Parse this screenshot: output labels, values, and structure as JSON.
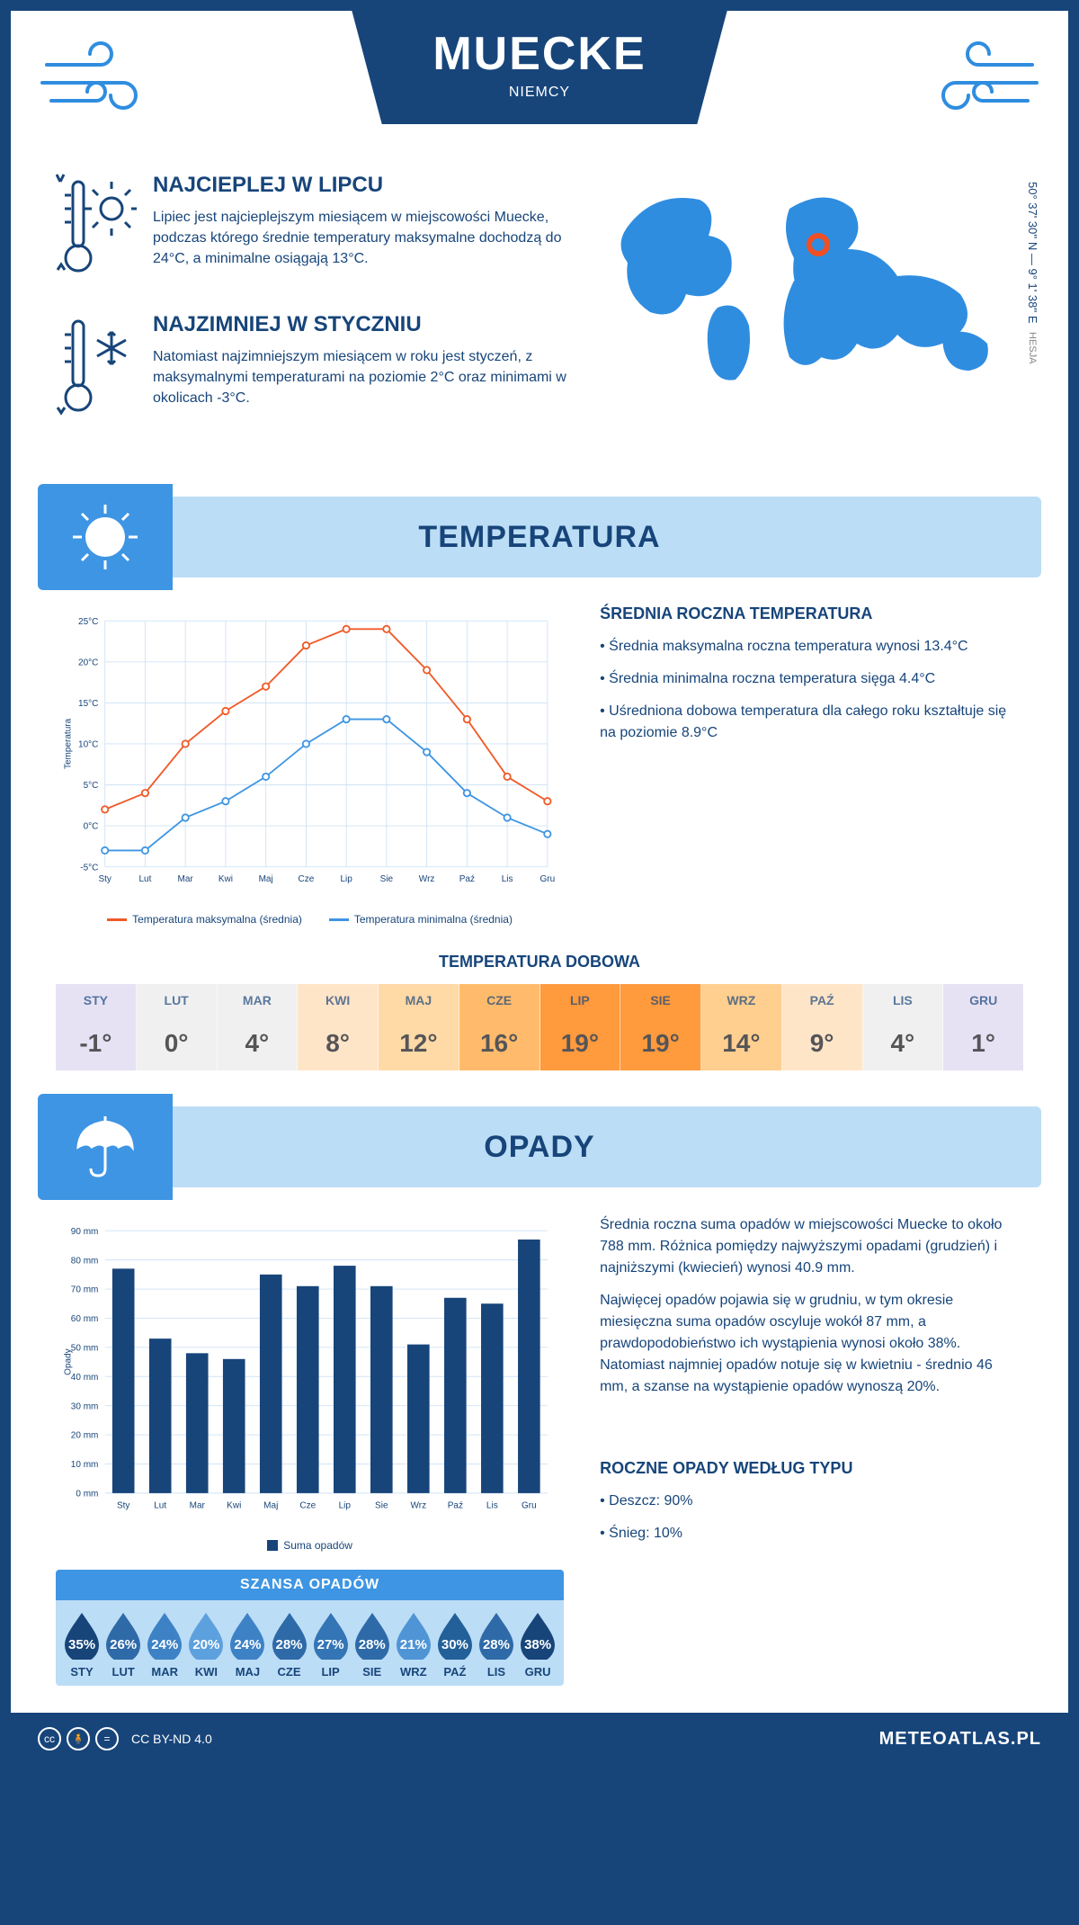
{
  "header": {
    "city": "MUECKE",
    "country": "NIEMCY"
  },
  "coords": {
    "text": "50° 37' 30'' N — 9° 1' 38'' E",
    "region": "HESJA"
  },
  "overview": {
    "hot": {
      "title": "NAJCIEPLEJ W LIPCU",
      "text": "Lipiec jest najcieplejszym miesiącem w miejscowości Muecke, podczas którego średnie temperatury maksymalne dochodzą do 24°C, a minimalne osiągają 13°C."
    },
    "cold": {
      "title": "NAJZIMNIEJ W STYCZNIU",
      "text": "Natomiast najzimniejszym miesiącem w roku jest styczeń, z maksymalnymi temperaturami na poziomie 2°C oraz minimami w okolicach -3°C."
    }
  },
  "temperature": {
    "section_title": "TEMPERATURA",
    "chart": {
      "type": "line",
      "months": [
        "Sty",
        "Lut",
        "Mar",
        "Kwi",
        "Maj",
        "Cze",
        "Lip",
        "Sie",
        "Wrz",
        "Paź",
        "Lis",
        "Gru"
      ],
      "series": [
        {
          "name": "Temperatura maksymalna (średnia)",
          "color": "#f05a28",
          "values": [
            2,
            4,
            10,
            14,
            17,
            22,
            24,
            24,
            19,
            13,
            6,
            3
          ]
        },
        {
          "name": "Temperatura minimalna (średnia)",
          "color": "#3e95e3",
          "values": [
            -3,
            -3,
            1,
            3,
            6,
            10,
            13,
            13,
            9,
            4,
            1,
            -1
          ]
        }
      ],
      "ylabel": "Temperatura",
      "ylim": [
        -5,
        25
      ],
      "ytick_step": 5,
      "grid_color": "#cfe3f5",
      "background": "#ffffff",
      "marker": "circle",
      "line_width": 2
    },
    "side": {
      "title": "ŚREDNIA ROCZNA TEMPERATURA",
      "bullets": [
        "• Średnia maksymalna roczna temperatura wynosi 13.4°C",
        "• Średnia minimalna roczna temperatura sięga 4.4°C",
        "• Uśredniona dobowa temperatura dla całego roku kształtuje się na poziomie 8.9°C"
      ]
    },
    "daily": {
      "title": "TEMPERATURA DOBOWA",
      "months": [
        "STY",
        "LUT",
        "MAR",
        "KWI",
        "MAJ",
        "CZE",
        "LIP",
        "SIE",
        "WRZ",
        "PAŹ",
        "LIS",
        "GRU"
      ],
      "values": [
        "-1°",
        "0°",
        "4°",
        "8°",
        "12°",
        "16°",
        "19°",
        "19°",
        "14°",
        "9°",
        "4°",
        "1°"
      ],
      "colors": [
        "#e6e2f4",
        "#f1f0f0",
        "#f1f0f0",
        "#ffe5c8",
        "#ffd9a6",
        "#ffbb6b",
        "#ff9a3d",
        "#ff9a3d",
        "#ffcf8f",
        "#ffe5c8",
        "#f1f0f0",
        "#e6e2f4"
      ]
    }
  },
  "precip": {
    "section_title": "OPADY",
    "chart": {
      "type": "bar",
      "months": [
        "Sty",
        "Lut",
        "Mar",
        "Kwi",
        "Maj",
        "Cze",
        "Lip",
        "Sie",
        "Wrz",
        "Paź",
        "Lis",
        "Gru"
      ],
      "values": [
        77,
        53,
        48,
        46,
        75,
        71,
        78,
        71,
        51,
        67,
        65,
        87
      ],
      "bar_color": "#17457a",
      "ylabel": "Opady",
      "ylim": [
        0,
        90
      ],
      "ytick_step": 10,
      "grid_color": "#cfe3f5",
      "legend": "Suma opadów"
    },
    "side": {
      "p1": "Średnia roczna suma opadów w miejscowości Muecke to około 788 mm. Różnica pomiędzy najwyższymi opadami (grudzień) i najniższymi (kwiecień) wynosi 40.9 mm.",
      "p2": "Najwięcej opadów pojawia się w grudniu, w tym okresie miesięczna suma opadów oscyluje wokół 87 mm, a prawdopodobieństwo ich wystąpienia wynosi około 38%. Natomiast najmniej opadów notuje się w kwietniu - średnio 46 mm, a szanse na wystąpienie opadów wynoszą 20%."
    },
    "chance": {
      "title": "SZANSA OPADÓW",
      "months": [
        "STY",
        "LUT",
        "MAR",
        "KWI",
        "MAJ",
        "CZE",
        "LIP",
        "SIE",
        "WRZ",
        "PAŹ",
        "LIS",
        "GRU"
      ],
      "values": [
        "35%",
        "26%",
        "24%",
        "20%",
        "24%",
        "28%",
        "27%",
        "28%",
        "21%",
        "30%",
        "28%",
        "38%"
      ],
      "colors": [
        "#17457a",
        "#2f6aa8",
        "#3e82c6",
        "#5da0de",
        "#3e82c6",
        "#2f6aa8",
        "#3375b5",
        "#2f6aa8",
        "#4f95d6",
        "#236099",
        "#2f6aa8",
        "#17457a"
      ]
    },
    "type": {
      "title": "ROCZNE OPADY WEDŁUG TYPU",
      "items": [
        "• Deszcz: 90%",
        "• Śnieg: 10%"
      ]
    }
  },
  "footer": {
    "license": "CC BY-ND 4.0",
    "brand": "METEOATLAS.PL"
  }
}
